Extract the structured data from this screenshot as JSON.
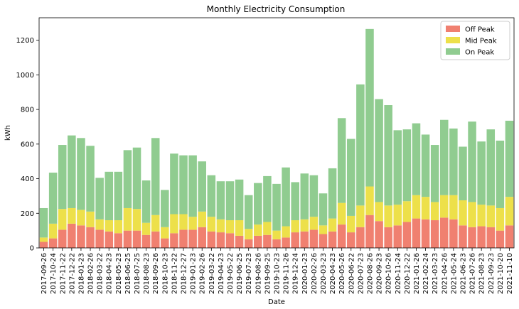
{
  "chart_data": {
    "type": "bar",
    "stacked": true,
    "title": "Monthly Electricity Consumption",
    "xlabel": "Date",
    "ylabel": "kWh",
    "ylim": [
      0,
      1330
    ],
    "yticks": [
      0,
      200,
      400,
      600,
      800,
      1000,
      1200
    ],
    "legend_position": "top-right",
    "categories": [
      "2017-09-26",
      "2017-10-24",
      "2017-11-22",
      "2017-12-22",
      "2018-01-23",
      "2018-02-26",
      "2018-03-22",
      "2018-04-23",
      "2018-05-23",
      "2018-06-25",
      "2018-07-25",
      "2018-08-23",
      "2018-09-26",
      "2018-10-23",
      "2018-11-22",
      "2018-12-27",
      "2019-01-23",
      "2019-02-26",
      "2019-03-22",
      "2019-04-23",
      "2019-05-22",
      "2019-06-25",
      "2019-07-23",
      "2019-08-26",
      "2019-09-25",
      "2019-10-23",
      "2019-11-26",
      "2019-12-24",
      "2020-01-23",
      "2020-02-26",
      "2020-03-23",
      "2020-04-23",
      "2020-05-26",
      "2020-06-22",
      "2020-07-23",
      "2020-08-26",
      "2020-09-23",
      "2020-10-26",
      "2020-11-24",
      "2020-12-22",
      "2021-01-26",
      "2021-02-24",
      "2021-03-23",
      "2021-04-26",
      "2021-05-24",
      "2021-06-23",
      "2021-07-26",
      "2021-08-23",
      "2021-09-23",
      "2021-10-20",
      "2021-11-10"
    ],
    "series": [
      {
        "name": "Off Peak",
        "color": "#f08070",
        "values": [
          35,
          55,
          105,
          140,
          130,
          120,
          105,
          95,
          85,
          100,
          100,
          75,
          95,
          55,
          85,
          105,
          105,
          120,
          95,
          90,
          85,
          70,
          50,
          70,
          75,
          50,
          60,
          90,
          95,
          105,
          80,
          95,
          135,
          90,
          120,
          190,
          155,
          120,
          130,
          150,
          170,
          165,
          160,
          175,
          165,
          130,
          120,
          125,
          120,
          100,
          130
        ]
      },
      {
        "name": "Mid Peak",
        "color": "#ede04a",
        "values": [
          25,
          85,
          120,
          90,
          90,
          90,
          60,
          65,
          75,
          130,
          125,
          70,
          95,
          65,
          110,
          90,
          75,
          90,
          85,
          75,
          75,
          90,
          60,
          65,
          75,
          50,
          65,
          70,
          70,
          75,
          50,
          75,
          125,
          95,
          125,
          165,
          110,
          125,
          120,
          120,
          135,
          130,
          105,
          130,
          140,
          145,
          145,
          125,
          125,
          130,
          165
        ]
      },
      {
        "name": "On Peak",
        "color": "#90cc90",
        "values": [
          170,
          295,
          370,
          420,
          415,
          380,
          240,
          280,
          280,
          335,
          355,
          245,
          445,
          215,
          350,
          340,
          355,
          290,
          240,
          220,
          225,
          235,
          195,
          240,
          265,
          270,
          340,
          220,
          265,
          240,
          185,
          290,
          490,
          445,
          700,
          910,
          595,
          580,
          430,
          415,
          415,
          360,
          330,
          435,
          385,
          310,
          465,
          365,
          440,
          390,
          440
        ]
      }
    ]
  }
}
